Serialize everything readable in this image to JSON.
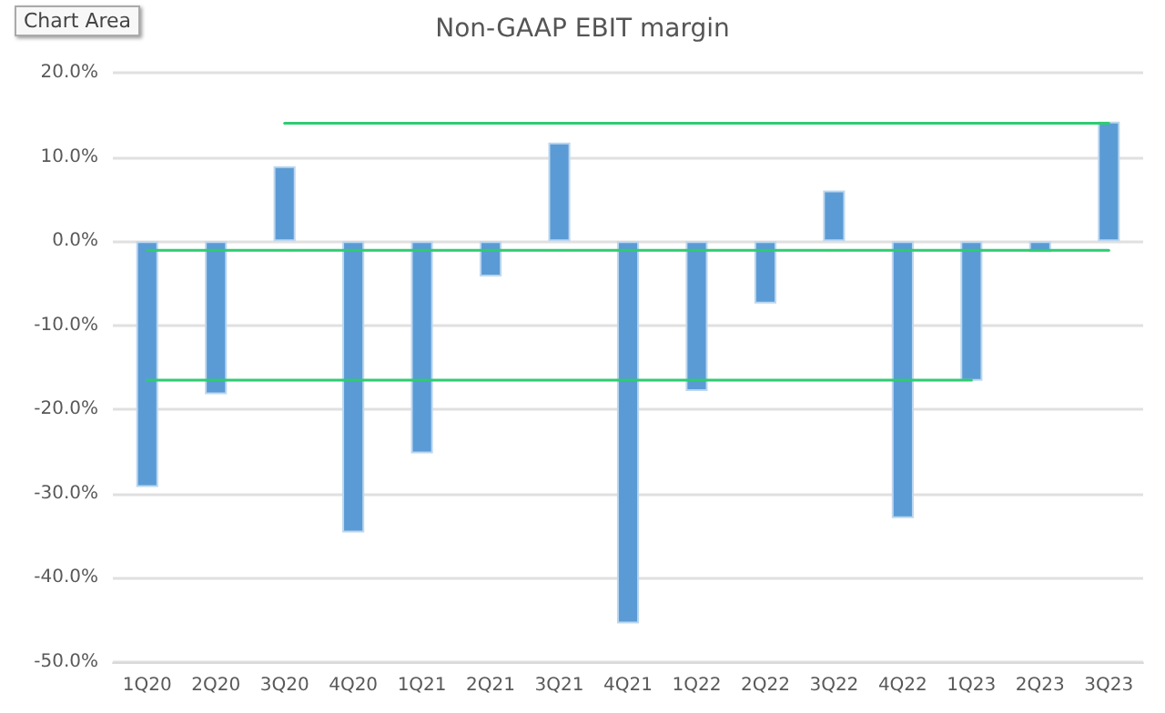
{
  "chart_data": {
    "type": "bar",
    "title": "Non-GAAP EBIT margin",
    "categories": [
      "1Q20",
      "2Q20",
      "3Q20",
      "4Q20",
      "1Q21",
      "2Q21",
      "3Q21",
      "4Q21",
      "1Q22",
      "2Q22",
      "3Q22",
      "4Q22",
      "1Q23",
      "2Q23",
      "3Q23"
    ],
    "series": [
      {
        "color": "#5b9bd5",
        "values": [
          -29.2,
          -18.2,
          8.9,
          -34.6,
          -25.2,
          -4.2,
          11.7,
          -45.4,
          -17.8,
          -7.4,
          6.0,
          -32.9,
          -16.6,
          -1.3,
          14.2
        ]
      },
      {
        "type": "line",
        "color": "#2ecc71",
        "values": [
          null,
          null,
          14.0,
          14.0,
          14.0,
          14.0,
          14.0,
          14.0,
          14.0,
          14.0,
          14.0,
          14.0,
          14.0,
          14.0,
          14.0
        ]
      },
      {
        "type": "line",
        "color": "#2ecc71",
        "values": [
          -1.1,
          -1.1,
          -1.1,
          -1.1,
          -1.1,
          -1.1,
          -1.1,
          -1.1,
          -1.1,
          -1.1,
          -1.1,
          -1.1,
          -1.1,
          -1.1,
          -1.1
        ]
      },
      {
        "type": "line",
        "color": "#2ecc71",
        "values": [
          -16.5,
          -16.5,
          -16.5,
          -16.5,
          -16.5,
          -16.5,
          -16.5,
          -16.5,
          -16.5,
          -16.5,
          -16.5,
          -16.5,
          -16.5,
          null,
          null
        ]
      }
    ],
    "ylim": [
      -50,
      20
    ],
    "yticks": [
      {
        "value": -50,
        "label": "-50.0%"
      },
      {
        "value": -40,
        "label": "-40.0%"
      },
      {
        "value": -30,
        "label": "-30.0%"
      },
      {
        "value": -20,
        "label": "-20.0%"
      },
      {
        "value": -10,
        "label": "-10.0%"
      },
      {
        "value": 0,
        "label": "0.0%"
      },
      {
        "value": 10,
        "label": "10.0%"
      },
      {
        "value": 20,
        "label": "20.0%"
      }
    ],
    "grid": "y",
    "marker": "none",
    "line_style": "solid",
    "annotations": [
      "Chart Area"
    ]
  }
}
